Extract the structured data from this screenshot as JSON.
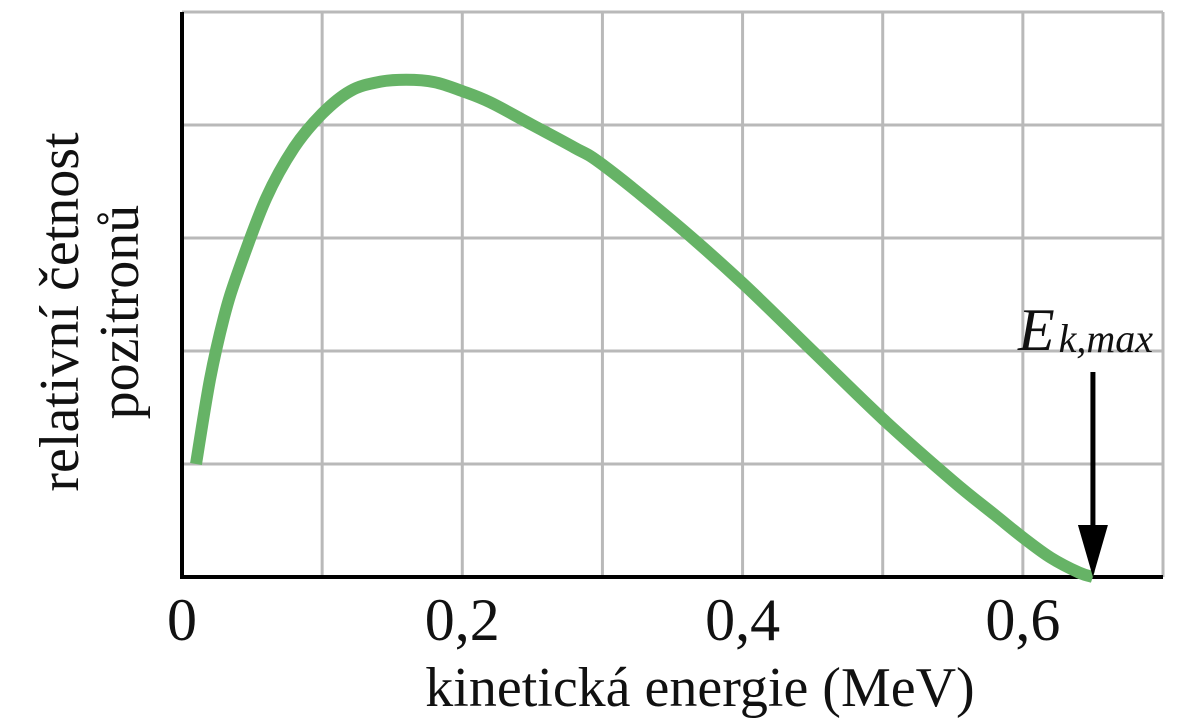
{
  "chart_data": {
    "type": "line",
    "title": "",
    "xlabel": "kinetická energie (MeV)",
    "ylabel": [
      "relativní četnost",
      "pozitronů"
    ],
    "xlim": [
      0,
      0.7
    ],
    "ylim": [
      0,
      5
    ],
    "x_ticks": [
      0,
      0.2,
      0.4,
      0.6
    ],
    "x_tick_labels": [
      "0",
      "0,2",
      "0,4",
      "0,6"
    ],
    "grid": true,
    "x_grid_step": 0.1,
    "y_grid_step": 1,
    "y_ticks_labeled": false,
    "series": [
      {
        "color": "#66b366",
        "x": [
          0.01,
          0.02,
          0.03,
          0.04,
          0.06,
          0.08,
          0.1,
          0.12,
          0.14,
          0.16,
          0.18,
          0.2,
          0.22,
          0.25,
          0.28,
          0.3,
          0.35,
          0.4,
          0.45,
          0.5,
          0.55,
          0.58,
          0.6,
          0.62,
          0.64,
          0.65
        ],
        "y": [
          1.0,
          1.75,
          2.3,
          2.7,
          3.35,
          3.8,
          4.1,
          4.3,
          4.38,
          4.4,
          4.38,
          4.3,
          4.2,
          4.0,
          3.8,
          3.65,
          3.15,
          2.6,
          2.0,
          1.4,
          0.85,
          0.55,
          0.35,
          0.17,
          0.04,
          0.0
        ]
      }
    ],
    "annotations": [
      {
        "text": "E",
        "subscript": "k,max",
        "x": 0.65,
        "arrow_to_y": 0
      }
    ]
  }
}
